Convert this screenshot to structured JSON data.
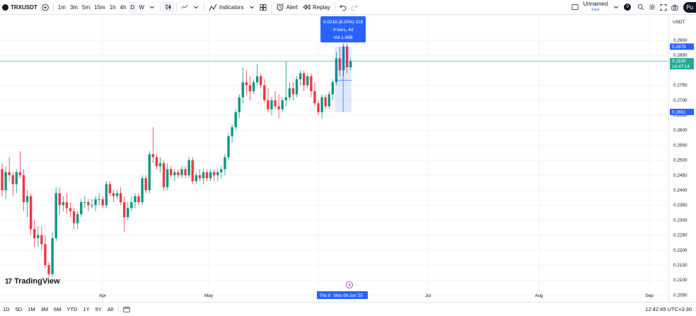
{
  "toolbar": {
    "symbol": "TRXUSDT",
    "timeframes": [
      "1m",
      "3m",
      "5m",
      "15m",
      "1h",
      "4h",
      "D",
      "W"
    ],
    "active_timeframe": "D",
    "indicators_label": "Indicators",
    "alert_label": "Alert",
    "replay_label": "Replay",
    "layout_name": "Unnamed",
    "save_label": "Save",
    "user_badge": "0",
    "publish_label": "Pu"
  },
  "price_scale": {
    "currency": "USDT",
    "ticks": [
      "0.2900",
      "0.2850",
      "0.2750",
      "0.2700",
      "0.2650",
      "0.2600",
      "0.2550",
      "0.2500",
      "0.2450",
      "0.2400",
      "0.2350",
      "0.2300",
      "0.2250",
      "0.2200",
      "0.2150",
      "0.2100",
      "0.2050"
    ],
    "label_high": "0.2879",
    "label_last": "0.2830",
    "label_countdown": "14:47:14",
    "label_low": "0.2661"
  },
  "measure": {
    "line1": "0.0218 (8.20%) 218",
    "line2": "4 bars, 4d",
    "line3": "Vol 1.48B"
  },
  "time_axis": {
    "labels": [
      "Apr",
      "May",
      "Jul",
      "Aug",
      "Sep"
    ],
    "cursor_left": "Thu 0",
    "cursor_right": "Mon 09 Jun '25"
  },
  "branding": {
    "text": "TradingView"
  },
  "bottom": {
    "ranges": [
      "1D",
      "5D",
      "1M",
      "3M",
      "6M",
      "YTD",
      "1Y",
      "5Y",
      "All"
    ],
    "clock": "12:42:45 UTC+3:30"
  },
  "colors": {
    "up": "#089981",
    "down": "#f23645",
    "accent": "#2962ff",
    "last": "#22ab94"
  },
  "chart_data": {
    "type": "candlestick",
    "ylim": [
      0.2025,
      0.2985
    ],
    "candles": [
      [
        0.247,
        0.249,
        0.238,
        0.24
      ],
      [
        0.24,
        0.248,
        0.237,
        0.246
      ],
      [
        0.246,
        0.251,
        0.243,
        0.245
      ],
      [
        0.245,
        0.246,
        0.238,
        0.242
      ],
      [
        0.242,
        0.247,
        0.239,
        0.246
      ],
      [
        0.246,
        0.253,
        0.244,
        0.245
      ],
      [
        0.245,
        0.247,
        0.233,
        0.236
      ],
      [
        0.236,
        0.24,
        0.231,
        0.238
      ],
      [
        0.238,
        0.239,
        0.225,
        0.227
      ],
      [
        0.227,
        0.23,
        0.221,
        0.224
      ],
      [
        0.224,
        0.228,
        0.221,
        0.225
      ],
      [
        0.225,
        0.228,
        0.22,
        0.222
      ],
      [
        0.222,
        0.225,
        0.214,
        0.215
      ],
      [
        0.215,
        0.216,
        0.211,
        0.212
      ],
      [
        0.212,
        0.226,
        0.211,
        0.224
      ],
      [
        0.224,
        0.241,
        0.223,
        0.239
      ],
      [
        0.239,
        0.241,
        0.232,
        0.235
      ],
      [
        0.235,
        0.238,
        0.233,
        0.236
      ],
      [
        0.236,
        0.239,
        0.232,
        0.234
      ],
      [
        0.234,
        0.236,
        0.231,
        0.233
      ],
      [
        0.233,
        0.234,
        0.227,
        0.229
      ],
      [
        0.229,
        0.233,
        0.227,
        0.232
      ],
      [
        0.232,
        0.237,
        0.231,
        0.236
      ],
      [
        0.236,
        0.238,
        0.234,
        0.236
      ],
      [
        0.236,
        0.237,
        0.233,
        0.235
      ],
      [
        0.235,
        0.237,
        0.234,
        0.235
      ],
      [
        0.235,
        0.238,
        0.233,
        0.237
      ],
      [
        0.237,
        0.239,
        0.235,
        0.237
      ],
      [
        0.237,
        0.238,
        0.234,
        0.235
      ],
      [
        0.235,
        0.243,
        0.234,
        0.242
      ],
      [
        0.242,
        0.243,
        0.238,
        0.239
      ],
      [
        0.239,
        0.24,
        0.236,
        0.238
      ],
      [
        0.238,
        0.24,
        0.237,
        0.239
      ],
      [
        0.239,
        0.241,
        0.235,
        0.236
      ],
      [
        0.236,
        0.238,
        0.226,
        0.231
      ],
      [
        0.231,
        0.236,
        0.23,
        0.234
      ],
      [
        0.234,
        0.238,
        0.233,
        0.236
      ],
      [
        0.236,
        0.239,
        0.234,
        0.238
      ],
      [
        0.238,
        0.239,
        0.235,
        0.236
      ],
      [
        0.236,
        0.245,
        0.235,
        0.244
      ],
      [
        0.244,
        0.245,
        0.239,
        0.24
      ],
      [
        0.24,
        0.253,
        0.239,
        0.252
      ],
      [
        0.252,
        0.261,
        0.249,
        0.251
      ],
      [
        0.251,
        0.252,
        0.247,
        0.248
      ],
      [
        0.248,
        0.251,
        0.246,
        0.249
      ],
      [
        0.249,
        0.25,
        0.24,
        0.241
      ],
      [
        0.241,
        0.249,
        0.24,
        0.247
      ],
      [
        0.247,
        0.248,
        0.244,
        0.245
      ],
      [
        0.245,
        0.247,
        0.243,
        0.246
      ],
      [
        0.246,
        0.247,
        0.244,
        0.245
      ],
      [
        0.245,
        0.248,
        0.244,
        0.247
      ],
      [
        0.247,
        0.248,
        0.244,
        0.245
      ],
      [
        0.245,
        0.251,
        0.244,
        0.25
      ],
      [
        0.25,
        0.251,
        0.242,
        0.243
      ],
      [
        0.243,
        0.246,
        0.242,
        0.245
      ],
      [
        0.245,
        0.247,
        0.243,
        0.244
      ],
      [
        0.244,
        0.247,
        0.242,
        0.246
      ],
      [
        0.246,
        0.247,
        0.243,
        0.244
      ],
      [
        0.244,
        0.247,
        0.243,
        0.246
      ],
      [
        0.246,
        0.247,
        0.243,
        0.245
      ],
      [
        0.245,
        0.247,
        0.243,
        0.246
      ],
      [
        0.246,
        0.248,
        0.244,
        0.247
      ],
      [
        0.247,
        0.252,
        0.245,
        0.251
      ],
      [
        0.251,
        0.259,
        0.25,
        0.258
      ],
      [
        0.258,
        0.262,
        0.256,
        0.261
      ],
      [
        0.261,
        0.267,
        0.26,
        0.266
      ],
      [
        0.266,
        0.272,
        0.264,
        0.271
      ],
      [
        0.271,
        0.281,
        0.269,
        0.276
      ],
      [
        0.276,
        0.28,
        0.272,
        0.275
      ],
      [
        0.275,
        0.278,
        0.27,
        0.273
      ],
      [
        0.273,
        0.277,
        0.272,
        0.276
      ],
      [
        0.276,
        0.282,
        0.275,
        0.278
      ],
      [
        0.278,
        0.279,
        0.274,
        0.275
      ],
      [
        0.275,
        0.277,
        0.269,
        0.27
      ],
      [
        0.27,
        0.274,
        0.266,
        0.267
      ],
      [
        0.267,
        0.271,
        0.265,
        0.27
      ],
      [
        0.27,
        0.273,
        0.267,
        0.268
      ],
      [
        0.268,
        0.272,
        0.264,
        0.267
      ],
      [
        0.267,
        0.271,
        0.266,
        0.27
      ],
      [
        0.27,
        0.283,
        0.268,
        0.271
      ],
      [
        0.271,
        0.276,
        0.27,
        0.274
      ],
      [
        0.274,
        0.276,
        0.27,
        0.272
      ],
      [
        0.272,
        0.278,
        0.271,
        0.277
      ],
      [
        0.277,
        0.28,
        0.275,
        0.279
      ],
      [
        0.279,
        0.28,
        0.273,
        0.275
      ],
      [
        0.275,
        0.279,
        0.274,
        0.278
      ],
      [
        0.278,
        0.279,
        0.271,
        0.273
      ],
      [
        0.273,
        0.276,
        0.268,
        0.269
      ],
      [
        0.269,
        0.27,
        0.265,
        0.266
      ],
      [
        0.266,
        0.272,
        0.264,
        0.271
      ],
      [
        0.271,
        0.272,
        0.267,
        0.268
      ],
      [
        0.268,
        0.273,
        0.267,
        0.272
      ],
      [
        0.272,
        0.277,
        0.27,
        0.276
      ],
      [
        0.276,
        0.286,
        0.275,
        0.284
      ],
      [
        0.284,
        0.288,
        0.278,
        0.28
      ],
      [
        0.28,
        0.289,
        0.278,
        0.288
      ],
      [
        0.288,
        0.289,
        0.279,
        0.281
      ],
      [
        0.281,
        0.284,
        0.28,
        0.283
      ]
    ]
  }
}
